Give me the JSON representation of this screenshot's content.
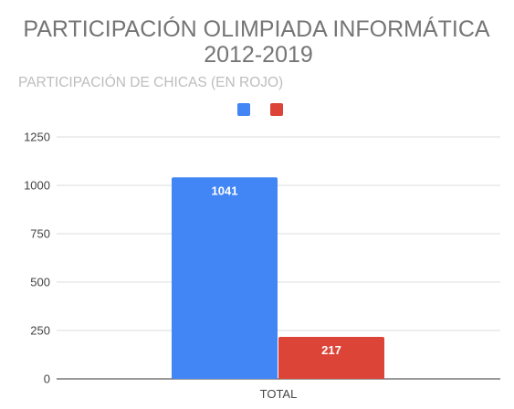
{
  "chart_data": {
    "type": "bar",
    "title": "PARTICIPACIÓN OLIMPIADA INFORMÁTICA",
    "title_line2": "2012-2019",
    "subtitle": "PARTICIPACIÓN DE CHICAS (EN ROJO)",
    "categories": [
      "TOTAL"
    ],
    "series": [
      {
        "values": [
          1041
        ],
        "color": "#4285f4"
      },
      {
        "values": [
          217
        ],
        "color": "#db4437"
      }
    ],
    "ylim": [
      0,
      1250
    ],
    "yticks": [
      "0",
      "250",
      "500",
      "750",
      "1000",
      "1250"
    ],
    "grid": true,
    "legend": "top-center"
  }
}
